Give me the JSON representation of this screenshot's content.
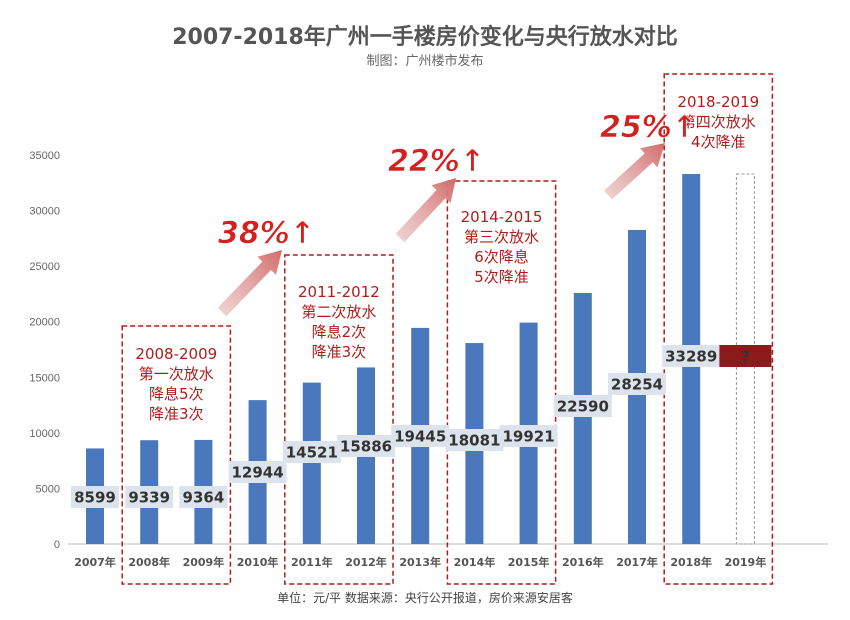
{
  "chart_data": {
    "type": "bar",
    "title": "2007-2018年广州一手楼房价变化与央行放水对比",
    "subtitle": "制图：广州楼市发布",
    "footnote": "单位：元/平 数据来源：央行公开报道，房价来源安居客",
    "categories": [
      "2007年",
      "2008年",
      "2009年",
      "2010年",
      "2011年",
      "2012年",
      "2013年",
      "2014年",
      "2015年",
      "2016年",
      "2017年",
      "2018年",
      "2019年"
    ],
    "values": [
      8599,
      9339,
      9364,
      12944,
      14521,
      15886,
      19445,
      18081,
      19921,
      22590,
      28254,
      33289,
      null
    ],
    "value_labels": [
      "8599",
      "9339",
      "9364",
      "12944",
      "14521",
      "15886",
      "19445",
      "18081",
      "19921",
      "22590",
      "28254",
      "33289",
      "?"
    ],
    "ylim": [
      0,
      35000
    ],
    "yticks": [
      0,
      5000,
      10000,
      15000,
      20000,
      25000,
      30000,
      35000
    ],
    "ytick_labels": [
      "0",
      "5000",
      "10000",
      "15000",
      "20000",
      "25000",
      "30000",
      "35000"
    ],
    "grid": false,
    "annotations": [
      {
        "lines": [
          "2008-2009",
          "第一次放水",
          "降息5次",
          "降准3次"
        ],
        "range": [
          1,
          2
        ]
      },
      {
        "lines": [
          "2011-2012",
          "第二次放水",
          "降息2次",
          "降准3次"
        ],
        "range": [
          4,
          5
        ]
      },
      {
        "lines": [
          "2014-2015",
          "第三次放水",
          "6次降息",
          "5次降准"
        ],
        "range": [
          7,
          8
        ]
      },
      {
        "lines": [
          "2018-2019",
          "第四次放水",
          "4次降准"
        ],
        "range": [
          11,
          12
        ]
      }
    ],
    "growth": [
      "38%↑",
      "22%↑",
      "25%↑"
    ],
    "colors": {
      "bar": "#4a78bd",
      "label_box": "#dde3ec",
      "annotation": "#b01c1c",
      "growth_text": "#d61f1f",
      "arrow": "#d88a8a",
      "question_box": "#8b1a1a"
    }
  }
}
